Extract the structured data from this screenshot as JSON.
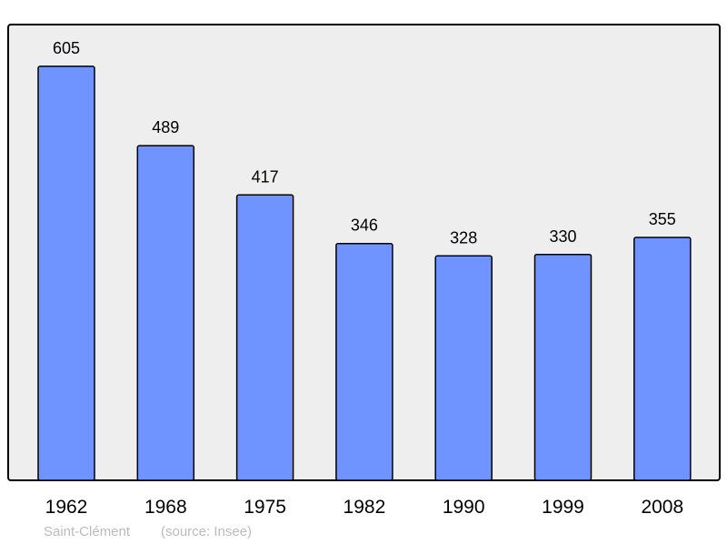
{
  "chart_data": {
    "type": "bar",
    "categories": [
      "1962",
      "1968",
      "1975",
      "1982",
      "1990",
      "1999",
      "2008"
    ],
    "values": [
      605,
      489,
      417,
      346,
      328,
      330,
      355
    ],
    "ylim": [
      0,
      666
    ],
    "grid": false,
    "bar_color": "#7094ff",
    "plot_background": "#eeeeee",
    "footer": {
      "place": "Saint-Clément",
      "source": "(source: Insee)"
    }
  }
}
